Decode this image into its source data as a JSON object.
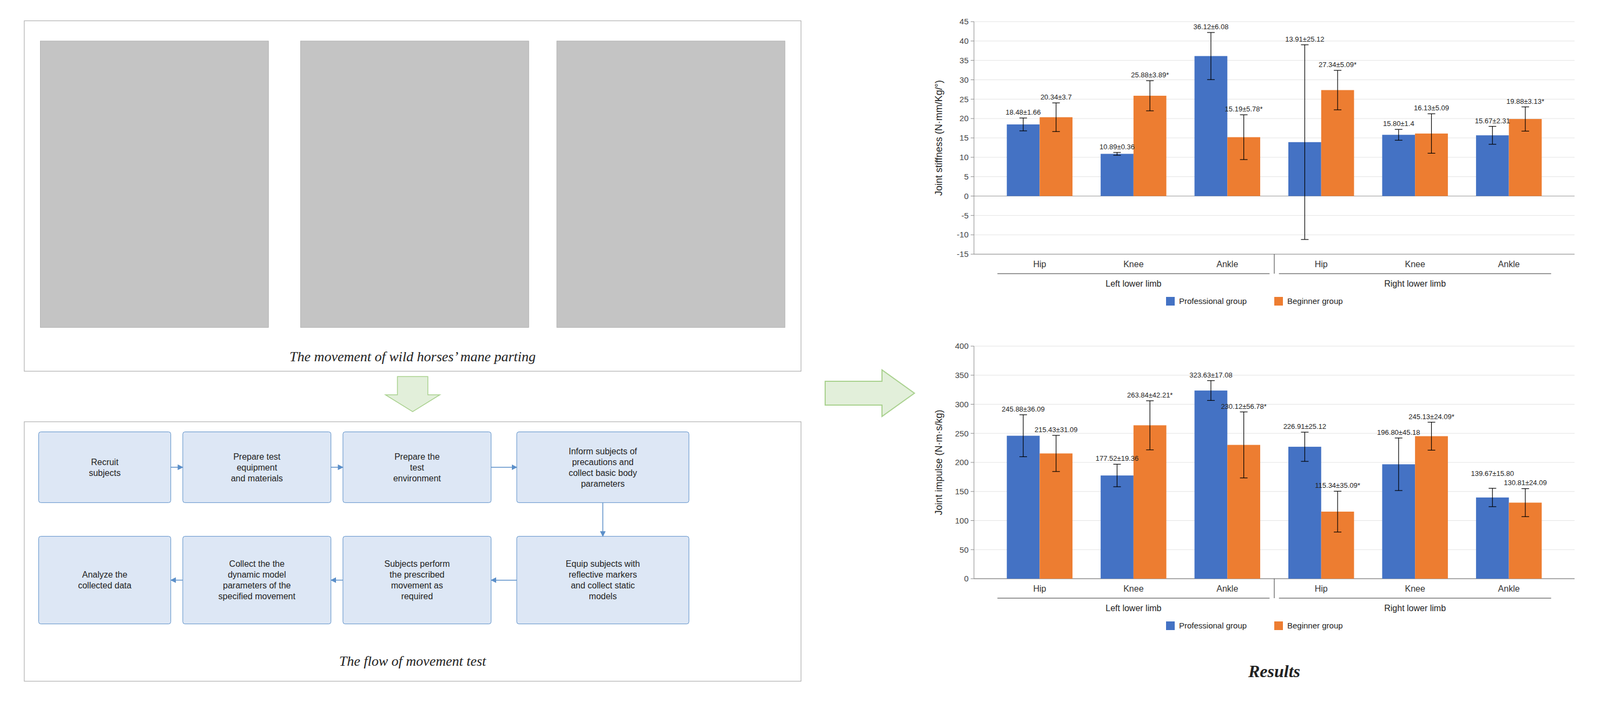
{
  "chart_data": [
    {
      "type": "bar",
      "y_label": "Joint stiffness (N·mm/Kg/°)",
      "categories": [
        "Hip",
        "Knee",
        "Ankle",
        "Hip",
        "Knee",
        "Ankle"
      ],
      "group_labels": [
        "Left lower limb",
        "Right lower limb"
      ],
      "series": [
        {
          "name": "Professional group",
          "color": "#4472C4",
          "values": [
            18.48,
            10.89,
            36.12,
            13.91,
            15.8,
            15.67
          ],
          "errors": [
            1.66,
            0.36,
            6.08,
            25.12,
            1.4,
            2.31
          ],
          "value_labels": [
            "18.48±1.66",
            "10.89±0.36",
            "36.12±6.08",
            "13.91±25.12",
            "15.80±1.4",
            "15.67±2.31"
          ]
        },
        {
          "name": "Beginner group",
          "color": "#ED7D31",
          "values": [
            20.34,
            25.88,
            15.19,
            27.34,
            16.13,
            19.88
          ],
          "errors": [
            3.7,
            3.89,
            5.78,
            5.09,
            5.09,
            3.13
          ],
          "value_labels": [
            "20.34±3.7",
            "25.88±3.89*",
            "15.19±5.78*",
            "27.34±5.09*",
            "16.13±5.09",
            "19.88±3.13*"
          ]
        }
      ],
      "ylim": [
        -15,
        45
      ],
      "yticks": [
        -15,
        -10,
        -5,
        0,
        5,
        10,
        15,
        20,
        25,
        30,
        35,
        40,
        45
      ],
      "grid": true,
      "legend": "bottom",
      "data_labels": true
    },
    {
      "type": "bar",
      "y_label": "Joint impulse (N·m·s/kg)",
      "categories": [
        "Hip",
        "Knee",
        "Ankle",
        "Hip",
        "Knee",
        "Ankle"
      ],
      "group_labels": [
        "Left lower limb",
        "Right lower limb"
      ],
      "series": [
        {
          "name": "Professional group",
          "color": "#4472C4",
          "values": [
            245.88,
            177.52,
            323.63,
            226.91,
            196.8,
            139.67
          ],
          "errors": [
            36.09,
            19.36,
            17.08,
            25.12,
            45.18,
            15.8
          ],
          "value_labels": [
            "245.88±36.09",
            "177.52±19.36",
            "323.63±17.08",
            "226.91±25.12",
            "196.80±45.18",
            "139.67±15.80"
          ]
        },
        {
          "name": "Beginner group",
          "color": "#ED7D31",
          "values": [
            215.43,
            263.84,
            230.12,
            115.34,
            245.13,
            130.81
          ],
          "errors": [
            31.09,
            42.21,
            56.78,
            35.09,
            24.09,
            24.09
          ],
          "value_labels": [
            "215.43±31.09",
            "263.84±42.21*",
            "230.12±56.78*",
            "115.34±35.09*",
            "245.13±24.09*",
            "130.81±24.09"
          ]
        }
      ],
      "ylim": [
        0,
        400
      ],
      "yticks": [
        0,
        50,
        100,
        150,
        200,
        250,
        300,
        350,
        400
      ],
      "grid": true,
      "legend": "bottom",
      "data_labels": true
    }
  ],
  "photo_caption": "The movement of wild horses’ mane parting",
  "flowchart": {
    "title": "The flow of movement test",
    "row0": [
      "Recruit\nsubjects",
      "Prepare test\nequipment\nand materials",
      "Prepare the\ntest\nenvironment",
      "Inform subjects of\nprecautions and\ncollect basic body\nparameters"
    ],
    "row1": [
      "Analyze the\ncollected data",
      "Collect the the\ndynamic model\nparameters of the\nspecified movement",
      "Subjects perform\nthe prescribed\nmovement as\nrequired",
      "Equip subjects with\nreflective markers\nand collect static\nmodels"
    ]
  },
  "results_title": "Results"
}
